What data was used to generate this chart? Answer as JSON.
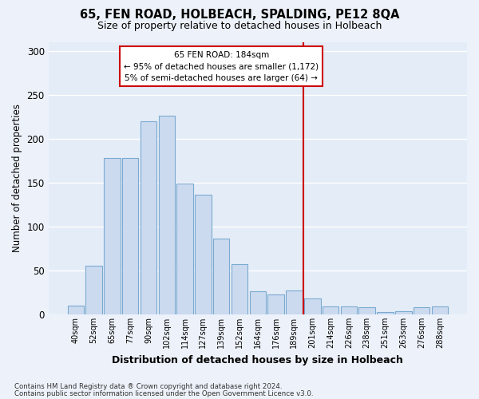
{
  "title": "65, FEN ROAD, HOLBEACH, SPALDING, PE12 8QA",
  "subtitle": "Size of property relative to detached houses in Holbeach",
  "xlabel": "Distribution of detached houses by size in Holbeach",
  "ylabel": "Number of detached properties",
  "bar_labels": [
    "40sqm",
    "52sqm",
    "65sqm",
    "77sqm",
    "90sqm",
    "102sqm",
    "114sqm",
    "127sqm",
    "139sqm",
    "152sqm",
    "164sqm",
    "176sqm",
    "189sqm",
    "201sqm",
    "214sqm",
    "226sqm",
    "238sqm",
    "251sqm",
    "263sqm",
    "276sqm",
    "288sqm"
  ],
  "bar_values": [
    10,
    55,
    178,
    178,
    220,
    226,
    149,
    136,
    86,
    57,
    26,
    23,
    27,
    18,
    9,
    9,
    8,
    3,
    4,
    8,
    9
  ],
  "bar_color": "#ccdaf0",
  "bar_edge_color": "#7aaad0",
  "vline_x": 12.5,
  "vline_color": "#cc0000",
  "annotation_title": "65 FEN ROAD: 184sqm",
  "annotation_line1": "← 95% of detached houses are smaller (1,172)",
  "annotation_line2": "5% of semi-detached houses are larger (64) →",
  "annotation_box_color": "#cc0000",
  "ylim": [
    0,
    310
  ],
  "yticks": [
    0,
    50,
    100,
    150,
    200,
    250,
    300
  ],
  "footnote1": "Contains HM Land Registry data ® Crown copyright and database right 2024.",
  "footnote2": "Contains public sector information licensed under the Open Government Licence v3.0.",
  "bg_color": "#edf2fa",
  "plot_bg_color": "#e4ecf7"
}
